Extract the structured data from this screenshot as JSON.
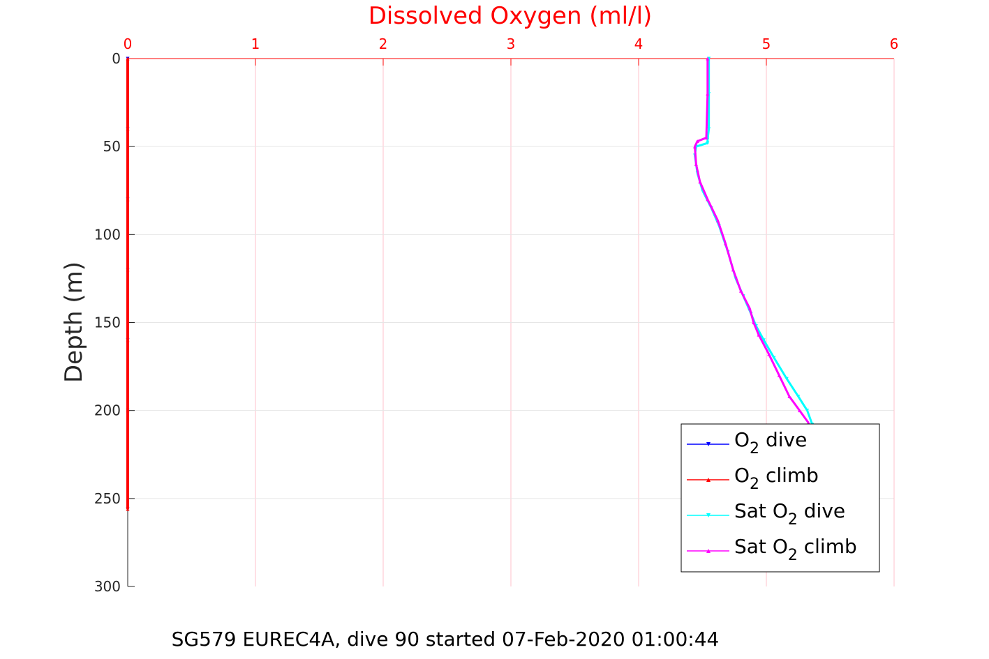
{
  "chart_data": {
    "type": "line",
    "title": "Dissolved Oxygen (ml/l)",
    "xlabel": "Dissolved Oxygen (ml/l)",
    "ylabel": "Depth (m)",
    "caption": "SG579 EUREC4A, dive 90 started 07-Feb-2020 01:00:44",
    "xlim": [
      0,
      6
    ],
    "ylim": [
      0,
      300
    ],
    "y_reversed": true,
    "x_axis_position": "top",
    "grid": true,
    "legend_position": "bottom-right",
    "x_ticks": [
      "0",
      "1",
      "2",
      "3",
      "4",
      "5",
      "6"
    ],
    "y_ticks": [
      "0",
      "50",
      "100",
      "150",
      "200",
      "250",
      "300"
    ],
    "colors": {
      "title": "#ff0000",
      "x_axis": "#ff0000",
      "grid": "#ffc0cb",
      "o2_dive": "#0000ff",
      "o2_climb": "#ff0000",
      "sat_dive": "#00ffff",
      "sat_climb": "#ff00ff"
    },
    "series": [
      {
        "name": "O2 dive",
        "legend_main": "O",
        "legend_sub": "2",
        "legend_after": " dive",
        "legend_before": "",
        "color": "#0000ff",
        "marker": "triangle-down",
        "x": [
          0,
          0,
          0,
          0,
          0,
          0,
          0
        ],
        "y": [
          0,
          40,
          80,
          120,
          160,
          200,
          256
        ]
      },
      {
        "name": "O2 climb",
        "legend_main": "O",
        "legend_sub": "2",
        "legend_after": " climb",
        "legend_before": "",
        "color": "#ff0000",
        "marker": "triangle-up",
        "x": [
          0,
          0,
          0,
          0,
          0,
          0,
          0
        ],
        "y": [
          0,
          40,
          80,
          120,
          160,
          200,
          256
        ]
      },
      {
        "name": "Sat O2 dive",
        "legend_before": "Sat ",
        "legend_main": "O",
        "legend_sub": "2",
        "legend_after": " dive",
        "color": "#00ffff",
        "marker": "triangle-down",
        "x": [
          4.55,
          4.55,
          4.55,
          4.54,
          4.54,
          4.45,
          4.44,
          4.46,
          4.5,
          4.57,
          4.63,
          4.7,
          4.76,
          4.82,
          4.88,
          4.92,
          4.98,
          5.06,
          5.16,
          5.25,
          5.32,
          5.36
        ],
        "y": [
          0,
          20,
          40,
          46,
          48,
          50,
          55,
          65,
          75,
          85,
          95,
          110,
          125,
          135,
          145,
          152,
          160,
          170,
          182,
          192,
          200,
          208
        ]
      },
      {
        "name": "Sat O2 climb",
        "legend_before": "Sat ",
        "legend_main": "O",
        "legend_sub": "2",
        "legend_after": " climb",
        "color": "#ff00ff",
        "marker": "triangle-up",
        "x": [
          4.54,
          4.54,
          4.53,
          4.46,
          4.44,
          4.45,
          4.48,
          4.54,
          4.62,
          4.68,
          4.74,
          4.8,
          4.87,
          4.9,
          4.94,
          5.02,
          5.1,
          5.18,
          5.26,
          5.33
        ],
        "y": [
          0,
          20,
          45,
          47,
          50,
          60,
          70,
          80,
          92,
          105,
          120,
          132,
          142,
          150,
          157,
          168,
          180,
          192,
          200,
          207
        ]
      }
    ]
  }
}
